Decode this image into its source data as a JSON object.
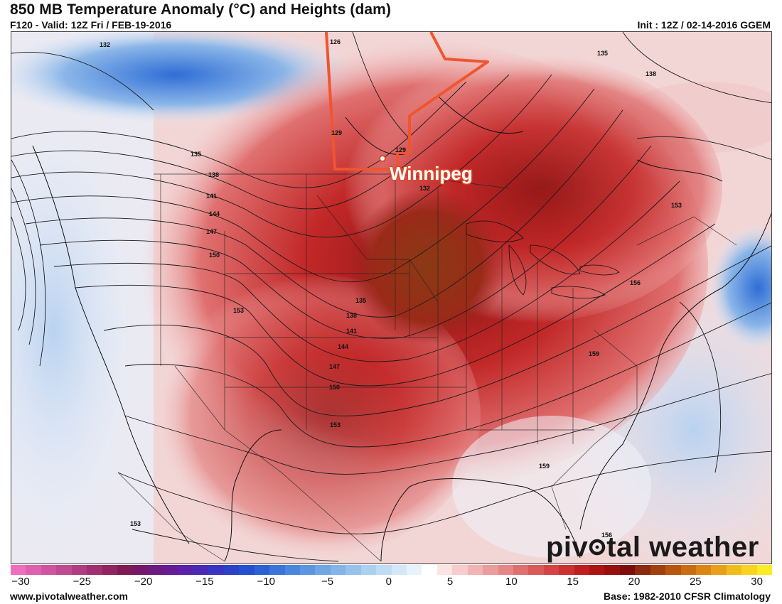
{
  "header": {
    "title": "850 MB Temperature Anomaly (°C) and Heights (dam)",
    "valid": "F120 - Valid: 12Z Fri / FEB-19-2016",
    "init": "Init : 12Z / 02-14-2016 GGEM"
  },
  "map": {
    "city": "Winnipeg",
    "height_labels": [
      "126",
      "132",
      "135",
      "138",
      "141",
      "144",
      "147",
      "150",
      "153",
      "156",
      "159",
      "129",
      "132",
      "135",
      "138",
      "141",
      "144",
      "147",
      "150",
      "153",
      "156",
      "159",
      "156",
      "153"
    ]
  },
  "colorbar": {
    "ticks": [
      "−30",
      "−25",
      "−20",
      "−15",
      "−10",
      "−5",
      "0",
      "5",
      "10",
      "15",
      "20",
      "25",
      "30"
    ],
    "colors": [
      "#f06ec0",
      "#e060b0",
      "#d055a0",
      "#c04a90",
      "#b03d80",
      "#a03070",
      "#902460",
      "#801a55",
      "#76186a",
      "#6e1a80",
      "#661c95",
      "#5a22a8",
      "#4a2ab5",
      "#3a34c0",
      "#2c40c8",
      "#2350d0",
      "#2a62d4",
      "#3a74d8",
      "#4a86dc",
      "#5c96e0",
      "#70a6e4",
      "#84b4e8",
      "#98c2ec",
      "#acd0f0",
      "#c0dcf4",
      "#d4e8f8",
      "#e8f2fb",
      "#ffffff",
      "#fbe4e4",
      "#f6cccc",
      "#f0b4b4",
      "#eb9c9c",
      "#e68686",
      "#e07070",
      "#da5a5a",
      "#d44444",
      "#cc3030",
      "#c01e1e",
      "#ac1414",
      "#961010",
      "#7e0c0c",
      "#8a2a0e",
      "#a0400e",
      "#b8560e",
      "#cc6c10",
      "#dc8414",
      "#e8a018",
      "#f2bc1c",
      "#f8d420",
      "#fcec24"
    ]
  },
  "footer": {
    "site": "www.pivotalweather.com",
    "base": "Base: 1982-2010 CFSR Climatology",
    "watermark_a": "piv",
    "watermark_b": "tal weather"
  },
  "colors": {
    "highlight": "#f0552e",
    "accent_dark": "#7a3418"
  }
}
